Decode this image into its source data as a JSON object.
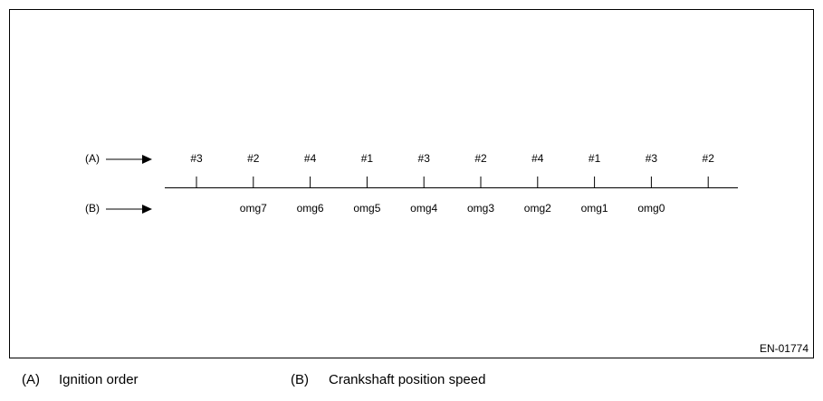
{
  "diagram": {
    "rows": [
      {
        "label": "(A)",
        "items": [
          "#3",
          "#2",
          "#4",
          "#1",
          "#3",
          "#2",
          "#4",
          "#1",
          "#3",
          "#2"
        ]
      },
      {
        "label": "(B)",
        "items": [
          "omg7",
          "omg6",
          "omg5",
          "omg4",
          "omg3",
          "omg2",
          "omg1",
          "omg0"
        ]
      }
    ],
    "figure_id": "EN-01774"
  },
  "legend": [
    {
      "key": "(A)",
      "text": "Ignition order"
    },
    {
      "key": "(B)",
      "text": "Crankshaft position speed"
    }
  ]
}
